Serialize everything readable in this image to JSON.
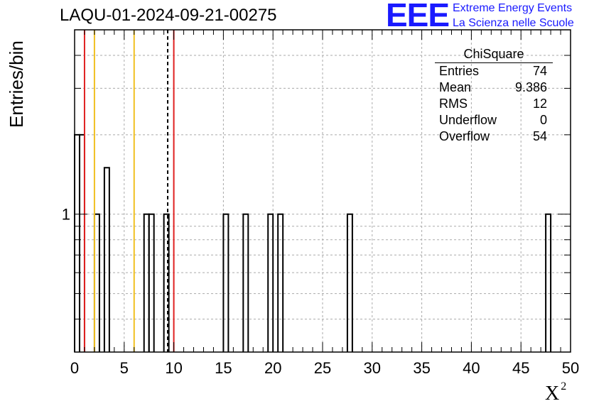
{
  "title": "LAQU-01-2024-09-21-00275",
  "logo": {
    "mark": "EEE",
    "line1": "Extreme Energy Events",
    "line2": "La Scienza nelle Scuole",
    "color": "#1a1aff"
  },
  "stats_box": {
    "name": "ChiSquare",
    "rows": [
      {
        "label": "Entries",
        "value": "74"
      },
      {
        "label": "Mean",
        "value": "9.386"
      },
      {
        "label": "RMS",
        "value": "12"
      },
      {
        "label": "Underflow",
        "value": "0"
      },
      {
        "label": "Overflow",
        "value": "54"
      }
    ]
  },
  "chart_data": {
    "type": "bar",
    "title": "LAQU-01-2024-09-21-00275",
    "xlabel": "X",
    "xlabel_superscript": "2",
    "ylabel": "Entries/bin",
    "xlim": [
      0,
      50
    ],
    "ylim": [
      0.3,
      5
    ],
    "yscale": "log",
    "grid": true,
    "bin_width": 0.5,
    "xticks": [
      0,
      5,
      10,
      15,
      20,
      25,
      30,
      35,
      40,
      45,
      50
    ],
    "yticks": [
      1
    ],
    "bins": [
      {
        "x": 0.0,
        "value": 2
      },
      {
        "x": 0.5,
        "value": 2
      },
      {
        "x": 2.0,
        "value": 1
      },
      {
        "x": 3.0,
        "value": 1.5
      },
      {
        "x": 7.0,
        "value": 1
      },
      {
        "x": 7.5,
        "value": 1
      },
      {
        "x": 9.0,
        "value": 1
      },
      {
        "x": 15.0,
        "value": 1
      },
      {
        "x": 17.0,
        "value": 1
      },
      {
        "x": 19.5,
        "value": 1
      },
      {
        "x": 20.5,
        "value": 1
      },
      {
        "x": 27.5,
        "value": 1
      },
      {
        "x": 47.5,
        "value": 1
      }
    ],
    "vertical_lines": [
      {
        "x": 1.0,
        "color": "#e02020",
        "style": "solid"
      },
      {
        "x": 2.0,
        "color": "#f0c020",
        "style": "solid"
      },
      {
        "x": 6.0,
        "color": "#f0c020",
        "style": "solid"
      },
      {
        "x": 9.386,
        "color": "#000000",
        "style": "dashed"
      },
      {
        "x": 10.0,
        "color": "#e02020",
        "style": "solid"
      }
    ]
  }
}
